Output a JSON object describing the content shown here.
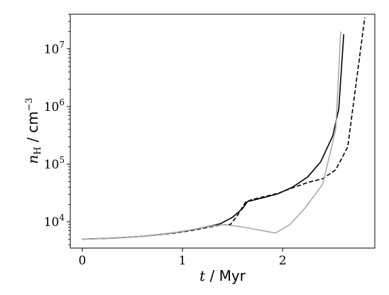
{
  "chart_data": {
    "type": "line",
    "xlabel": {
      "var": "t",
      "sep": " / ",
      "unit": "Myr"
    },
    "ylabel": {
      "var": "n",
      "sub": "H",
      "sep": " / ",
      "unit": "cm",
      "exp": "−3"
    },
    "xlim": [
      -0.12,
      2.92
    ],
    "ylim": [
      3500,
      40000000
    ],
    "yscale": "log",
    "grid": false,
    "x_ticks": [
      {
        "value": 0,
        "label": "0"
      },
      {
        "value": 1,
        "label": "1"
      },
      {
        "value": 2,
        "label": "2"
      }
    ],
    "y_ticks": [
      {
        "value": 10000,
        "base": "10",
        "exp": "4"
      },
      {
        "value": 100000,
        "base": "10",
        "exp": "5"
      },
      {
        "value": 1000000,
        "base": "10",
        "exp": "6"
      },
      {
        "value": 10000000,
        "base": "10",
        "exp": "7"
      }
    ],
    "series": [
      {
        "color": "#000000",
        "dash": "solid",
        "points": [
          [
            0.0,
            5000
          ],
          [
            0.3,
            5200
          ],
          [
            0.6,
            5600
          ],
          [
            0.9,
            6400
          ],
          [
            1.1,
            7300
          ],
          [
            1.3,
            8600
          ],
          [
            1.38,
            9300
          ],
          [
            1.5,
            12000
          ],
          [
            1.6,
            17000
          ],
          [
            1.65,
            22500
          ],
          [
            1.8,
            26000
          ],
          [
            1.95,
            30500
          ],
          [
            2.1,
            40000
          ],
          [
            2.25,
            60000
          ],
          [
            2.38,
            110000
          ],
          [
            2.5,
            310000
          ],
          [
            2.56,
            900000
          ],
          [
            2.61,
            18000000
          ]
        ]
      },
      {
        "color": "#000000",
        "dash": "dashed",
        "points": [
          [
            0.0,
            5000
          ],
          [
            0.3,
            5200
          ],
          [
            0.6,
            5600
          ],
          [
            0.9,
            6300
          ],
          [
            1.1,
            7100
          ],
          [
            1.3,
            8300
          ],
          [
            1.38,
            8800
          ],
          [
            1.48,
            9000
          ],
          [
            1.55,
            13000
          ],
          [
            1.63,
            22000
          ],
          [
            1.7,
            24500
          ],
          [
            1.95,
            31000
          ],
          [
            2.1,
            39000
          ],
          [
            2.25,
            48000
          ],
          [
            2.4,
            56000
          ],
          [
            2.53,
            80000
          ],
          [
            2.65,
            200000
          ],
          [
            2.82,
            35000000
          ]
        ]
      },
      {
        "color": "#aaaaaa",
        "dash": "solid",
        "points": [
          [
            0.0,
            5000
          ],
          [
            0.3,
            5200
          ],
          [
            0.6,
            5600
          ],
          [
            0.9,
            6400
          ],
          [
            1.1,
            7300
          ],
          [
            1.3,
            8500
          ],
          [
            1.4,
            8900
          ],
          [
            1.5,
            8600
          ],
          [
            1.62,
            8000
          ],
          [
            1.8,
            7000
          ],
          [
            1.93,
            6400
          ],
          [
            2.07,
            8900
          ],
          [
            2.22,
            17000
          ],
          [
            2.4,
            45000
          ],
          [
            2.53,
            400000
          ],
          [
            2.58,
            20000000
          ]
        ]
      }
    ]
  }
}
